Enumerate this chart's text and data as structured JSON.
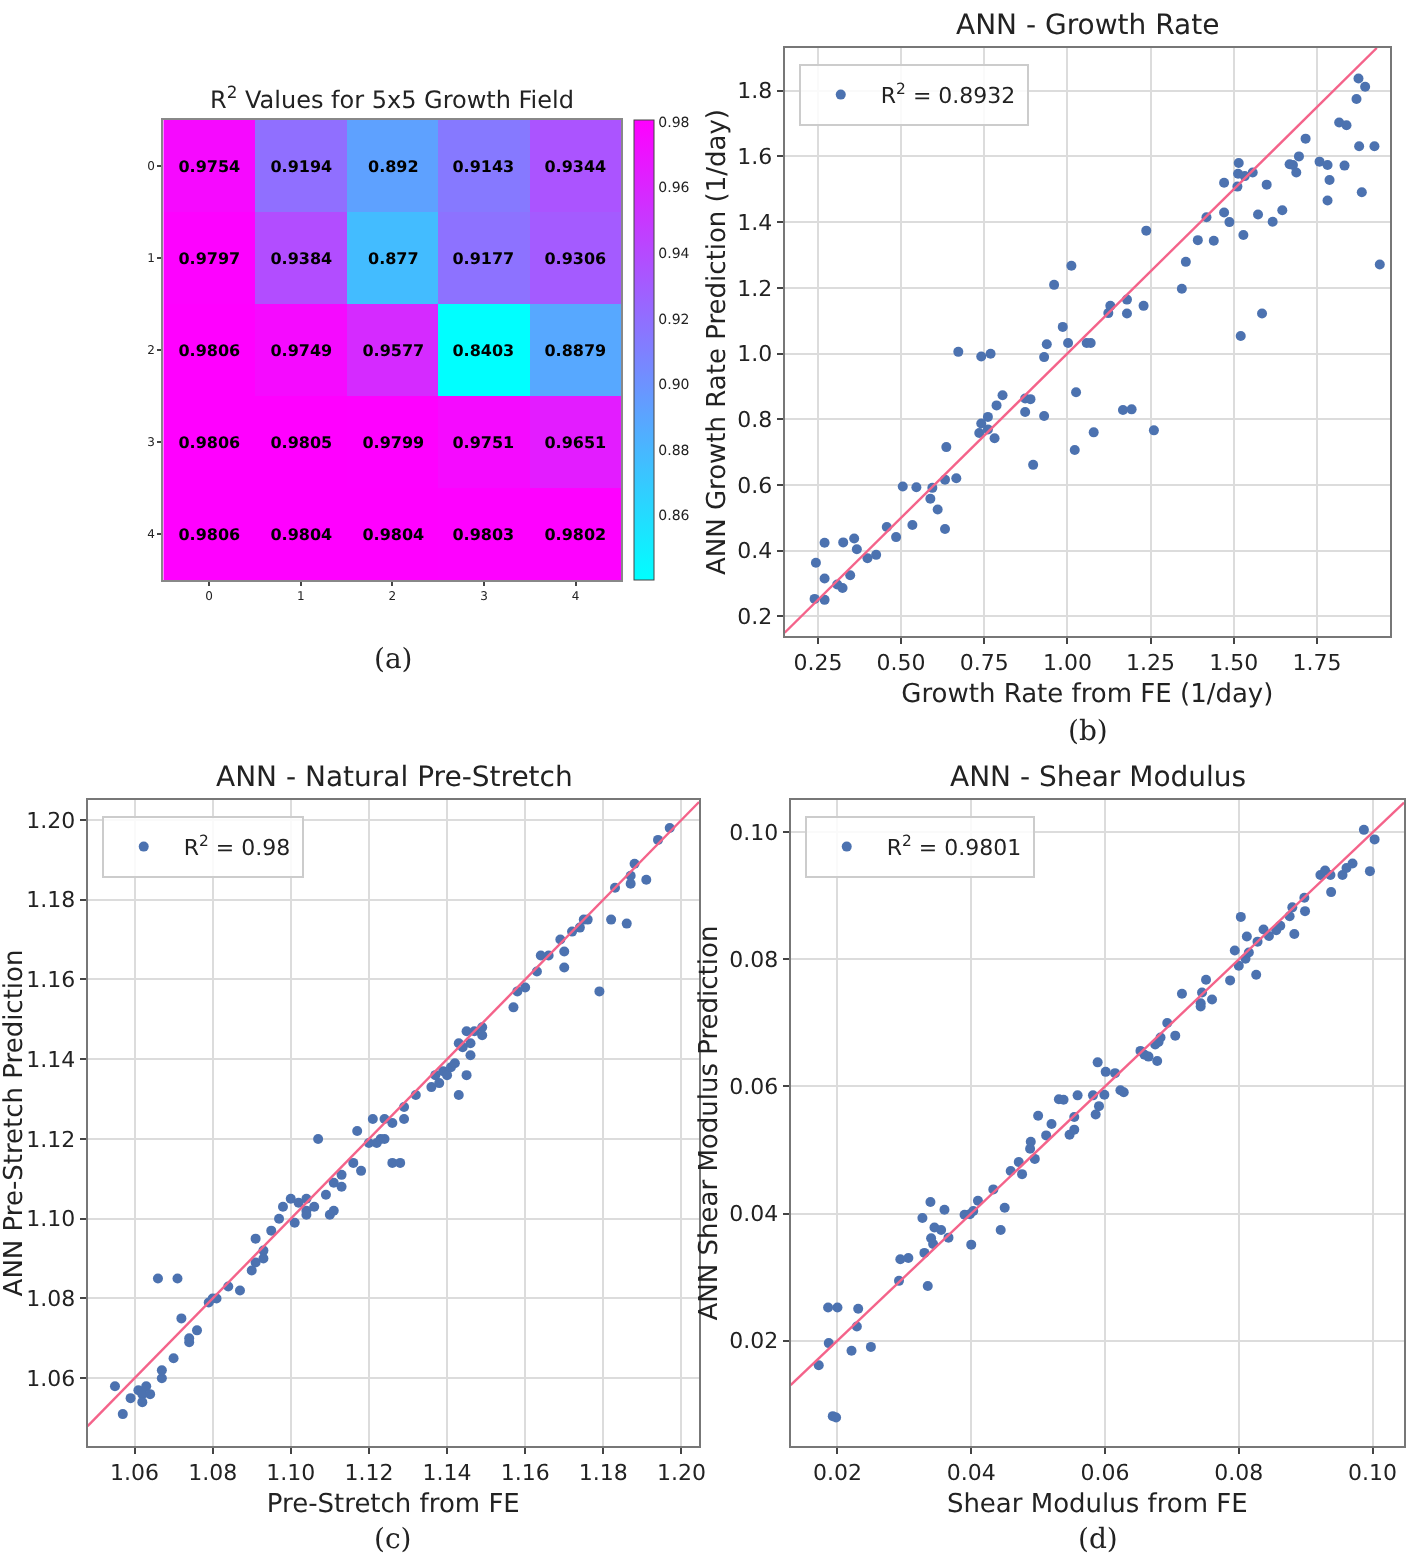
{
  "chart_data": [
    {
      "type": "heatmap",
      "title": "R$^{2}$ Values for 5x5 Growth Field",
      "categories": [
        "0",
        "1",
        "2",
        "3",
        "4"
      ],
      "y_categories": [
        "0",
        "1",
        "2",
        "3",
        "4"
      ],
      "cells": [
        [
          0.9754,
          0.9194,
          0.892,
          0.9143,
          0.9344
        ],
        [
          0.9797,
          0.9384,
          0.877,
          0.9177,
          0.9306
        ],
        [
          0.9806,
          0.9749,
          0.9577,
          0.8403,
          0.8879
        ],
        [
          0.9806,
          0.9805,
          0.9799,
          0.9751,
          0.9651
        ],
        [
          0.9806,
          0.9804,
          0.9804,
          0.9803,
          0.9802
        ]
      ],
      "data_labels": true,
      "clim": [
        0.8403,
        0.9806
      ],
      "cticks": [
        0.86,
        0.88,
        {
          "value": 0.9,
          "label": "0.90"
        },
        0.92,
        0.94,
        0.96,
        0.98
      ],
      "annotations": [
        "(a)"
      ]
    },
    {
      "type": "scatter",
      "title": "ANN - Growth Rate",
      "xlabel": "Growth Rate from FE (1/day)",
      "ylabel": "ANN Growth Rate Prediction (1/day)",
      "xlim": [
        0.15,
        1.97
      ],
      "ylim": [
        0.14,
        1.93
      ],
      "xticks": [
        0.25,
        {
          "value": 0.5,
          "label": "0.50"
        },
        0.75,
        {
          "value": 1.0,
          "label": "1.00"
        },
        1.25,
        {
          "value": 1.5,
          "label": "1.50"
        },
        1.75
      ],
      "yticks": [
        0.2,
        0.4,
        0.6,
        0.8,
        {
          "value": 1.0,
          "label": "1.0"
        },
        1.2,
        1.4,
        1.6,
        1.8
      ],
      "grid": true,
      "legend": "top left",
      "annotations": [
        "(b)"
      ],
      "series": [
        {
          "name": "R$^{2}$ = 0.8932",
          "color": "#4c72b0",
          "marker": "circle",
          "x": [
            0.24,
            0.244,
            0.27,
            0.27,
            0.27,
            0.308,
            0.324,
            0.326,
            0.347,
            0.359,
            0.367,
            0.399,
            0.425,
            0.457,
            0.485,
            0.505,
            0.534,
            0.546,
            0.588,
            0.594,
            0.61,
            0.632,
            0.632,
            0.636,
            0.666,
            0.672,
            0.735,
            0.741,
            0.741,
            0.761,
            0.761,
            0.769,
            0.781,
            0.787,
            0.805,
            0.873,
            0.873,
            0.889,
            0.897,
            0.93,
            0.93,
            0.938,
            0.96,
            0.986,
            1.002,
            1.012,
            1.022,
            1.026,
            1.058,
            1.07,
            1.079,
            1.123,
            1.129,
            1.167,
            1.193,
            1.179,
            1.179,
            1.229,
            1.237,
            1.26,
            1.344,
            1.356,
            1.392,
            1.418,
            1.44,
            1.471,
            1.471,
            1.487,
            1.511,
            1.513,
            1.515,
            1.521,
            1.529,
            1.533,
            1.557,
            1.573,
            1.585,
            1.599,
            1.617,
            1.646,
            1.668,
            1.678,
            1.688,
            1.696,
            1.716,
            1.758,
            1.782,
            1.782,
            1.788,
            1.817,
            1.833,
            1.839,
            1.869,
            1.875,
            1.877,
            1.885,
            1.895,
            1.923,
            1.939
          ],
          "values": [
            0.253,
            0.363,
            0.315,
            0.25,
            0.424,
            0.297,
            0.286,
            0.425,
            0.325,
            0.437,
            0.404,
            0.377,
            0.387,
            0.472,
            0.441,
            0.595,
            0.478,
            0.593,
            0.558,
            0.591,
            0.525,
            0.466,
            0.616,
            0.715,
            0.62,
            1.005,
            0.758,
            0.787,
            0.991,
            0.769,
            0.807,
            0.999,
            0.742,
            0.842,
            0.873,
            0.863,
            0.822,
            0.861,
            0.661,
            0.989,
            0.81,
            1.028,
            1.209,
            1.081,
            1.032,
            1.267,
            0.706,
            0.882,
            1.032,
            1.032,
            0.76,
            1.123,
            1.145,
            0.828,
            0.83,
            1.164,
            1.122,
            1.145,
            1.374,
            0.766,
            1.197,
            1.279,
            1.345,
            1.415,
            1.343,
            1.52,
            1.429,
            1.4,
            1.508,
            1.547,
            1.58,
            1.053,
            1.361,
            1.54,
            1.551,
            1.423,
            1.122,
            1.514,
            1.401,
            1.436,
            1.576,
            1.574,
            1.551,
            1.6,
            1.654,
            1.584,
            1.574,
            1.466,
            1.528,
            1.703,
            1.572,
            1.695,
            1.775,
            1.837,
            1.631,
            1.491,
            1.812,
            1.631,
            1.271
          ]
        },
        {
          "type": "line",
          "color": "#f4638a",
          "x": [
            0.15,
            1.93
          ],
          "values": [
            0.15,
            1.93
          ]
        }
      ]
    },
    {
      "type": "scatter",
      "title": "ANN - Natural Pre-Stretch",
      "xlabel": "Pre-Stretch from FE",
      "ylabel": "ANN Pre-Stretch Prediction",
      "xlim": [
        1.048,
        1.2045
      ],
      "ylim": [
        1.043,
        1.205
      ],
      "xticks": [
        1.06,
        1.08,
        {
          "value": 1.1,
          "label": "1.10"
        },
        1.12,
        1.14,
        1.16,
        1.18,
        {
          "value": 1.2,
          "label": "1.20"
        }
      ],
      "yticks": [
        1.06,
        1.08,
        {
          "value": 1.1,
          "label": "1.10"
        },
        1.12,
        1.14,
        1.16,
        1.18,
        {
          "value": 1.2,
          "label": "1.20"
        }
      ],
      "grid": true,
      "legend": "top left",
      "annotations": [
        "(c)"
      ],
      "series": [
        {
          "name": "R$^{2}$ = 0.98",
          "color": "#4c72b0",
          "marker": "circle",
          "x": [
            1.055,
            1.057,
            1.059,
            1.061,
            1.062,
            1.062,
            1.063,
            1.064,
            1.066,
            1.067,
            1.067,
            1.07,
            1.071,
            1.072,
            1.074,
            1.074,
            1.076,
            1.079,
            1.08,
            1.081,
            1.084,
            1.087,
            1.09,
            1.091,
            1.091,
            1.093,
            1.093,
            1.095,
            1.097,
            1.098,
            1.1,
            1.101,
            1.102,
            1.104,
            1.104,
            1.104,
            1.106,
            1.107,
            1.109,
            1.11,
            1.111,
            1.111,
            1.113,
            1.113,
            1.116,
            1.117,
            1.118,
            1.12,
            1.121,
            1.122,
            1.123,
            1.124,
            1.124,
            1.126,
            1.126,
            1.128,
            1.129,
            1.129,
            1.132,
            1.136,
            1.137,
            1.138,
            1.139,
            1.14,
            1.141,
            1.142,
            1.143,
            1.143,
            1.144,
            1.145,
            1.145,
            1.146,
            1.146,
            1.147,
            1.149,
            1.149,
            1.157,
            1.158,
            1.16,
            1.163,
            1.164,
            1.166,
            1.169,
            1.17,
            1.17,
            1.172,
            1.174,
            1.175,
            1.176,
            1.179,
            1.182,
            1.183,
            1.186,
            1.187,
            1.187,
            1.188,
            1.191,
            1.194,
            1.197
          ],
          "values": [
            1.058,
            1.051,
            1.055,
            1.057,
            1.056,
            1.054,
            1.058,
            1.056,
            1.085,
            1.06,
            1.062,
            1.065,
            1.085,
            1.075,
            1.069,
            1.07,
            1.072,
            1.079,
            1.08,
            1.08,
            1.083,
            1.082,
            1.087,
            1.089,
            1.095,
            1.092,
            1.09,
            1.097,
            1.1,
            1.103,
            1.105,
            1.099,
            1.104,
            1.105,
            1.102,
            1.101,
            1.103,
            1.12,
            1.106,
            1.101,
            1.102,
            1.109,
            1.111,
            1.108,
            1.114,
            1.122,
            1.112,
            1.119,
            1.125,
            1.119,
            1.12,
            1.125,
            1.12,
            1.114,
            1.124,
            1.114,
            1.128,
            1.125,
            1.131,
            1.133,
            1.136,
            1.134,
            1.137,
            1.136,
            1.138,
            1.139,
            1.144,
            1.131,
            1.143,
            1.136,
            1.147,
            1.141,
            1.144,
            1.147,
            1.148,
            1.146,
            1.153,
            1.157,
            1.158,
            1.162,
            1.166,
            1.166,
            1.17,
            1.167,
            1.163,
            1.172,
            1.173,
            1.175,
            1.175,
            1.157,
            1.175,
            1.183,
            1.174,
            1.184,
            1.186,
            1.189,
            1.185,
            1.195,
            1.198
          ]
        },
        {
          "type": "line",
          "color": "#f4638a",
          "x": [
            1.048,
            1.2045
          ],
          "values": [
            1.048,
            1.2045
          ]
        }
      ]
    },
    {
      "type": "scatter",
      "title": "ANN - Shear Modulus",
      "xlabel": "Shear Modulus from FE",
      "ylabel": "ANN Shear Modulus Prediction",
      "xlim": [
        0.013,
        0.1047
      ],
      "ylim": [
        0.0034,
        0.1051
      ],
      "xticks": [
        0.02,
        0.04,
        0.06,
        0.08,
        {
          "value": 0.1,
          "label": "0.10"
        }
      ],
      "yticks": [
        0.02,
        0.04,
        0.06,
        0.08,
        {
          "value": 0.1,
          "label": "0.10"
        }
      ],
      "grid": true,
      "legend": "top left",
      "annotations": [
        "(d)"
      ],
      "series": [
        {
          "name": "R$^{2}$ = 0.9801",
          "color": "#4c72b0",
          "marker": "circle",
          "x": [
            0.0172,
            0.0186,
            0.0187,
            0.0193,
            0.0198,
            0.02,
            0.0221,
            0.0229,
            0.0231,
            0.025,
            0.0292,
            0.0294,
            0.0306,
            0.0327,
            0.033,
            0.0335,
            0.0339,
            0.034,
            0.0343,
            0.0345,
            0.0355,
            0.036,
            0.0366,
            0.039,
            0.0398,
            0.04,
            0.0403,
            0.041,
            0.0433,
            0.0444,
            0.045,
            0.0459,
            0.0471,
            0.0476,
            0.0488,
            0.0489,
            0.0495,
            0.05,
            0.0512,
            0.052,
            0.0531,
            0.0538,
            0.0547,
            0.0554,
            0.0554,
            0.0559,
            0.0582,
            0.0586,
            0.0589,
            0.0591,
            0.0599,
            0.0601,
            0.0615,
            0.0623,
            0.0628,
            0.0653,
            0.0659,
            0.0665,
            0.0675,
            0.0678,
            0.068,
            0.0683,
            0.0693,
            0.0705,
            0.0715,
            0.0743,
            0.0743,
            0.0745,
            0.0751,
            0.076,
            0.0787,
            0.0794,
            0.08,
            0.0803,
            0.081,
            0.0812,
            0.0815,
            0.0826,
            0.0828,
            0.0837,
            0.0845,
            0.0856,
            0.0862,
            0.0876,
            0.088,
            0.0883,
            0.0898,
            0.0899,
            0.0922,
            0.0929,
            0.0937,
            0.0938,
            0.0955,
            0.0961,
            0.097,
            0.0987,
            0.0996,
            0.1003
          ],
          "values": [
            0.0161,
            0.0252,
            0.0196,
            0.0081,
            0.0079,
            0.0252,
            0.0184,
            0.0222,
            0.025,
            0.019,
            0.0294,
            0.0328,
            0.033,
            0.0393,
            0.0338,
            0.0286,
            0.0418,
            0.0361,
            0.0352,
            0.0378,
            0.0374,
            0.0406,
            0.0362,
            0.0398,
            0.0399,
            0.0351,
            0.0404,
            0.042,
            0.0438,
            0.0374,
            0.0409,
            0.0467,
            0.0481,
            0.0462,
            0.0502,
            0.0513,
            0.0486,
            0.0554,
            0.0523,
            0.0541,
            0.058,
            0.0579,
            0.0524,
            0.0552,
            0.0532,
            0.0586,
            0.0586,
            0.0556,
            0.0638,
            0.0569,
            0.0587,
            0.0623,
            0.0621,
            0.0594,
            0.0591,
            0.0656,
            0.065,
            0.0647,
            0.0666,
            0.064,
            0.067,
            0.0677,
            0.07,
            0.068,
            0.0746,
            0.0731,
            0.0726,
            0.0748,
            0.0768,
            0.0737,
            0.0767,
            0.0814,
            0.079,
            0.0867,
            0.0801,
            0.0836,
            0.0811,
            0.0776,
            0.0828,
            0.0847,
            0.0837,
            0.0846,
            0.0853,
            0.0868,
            0.0882,
            0.084,
            0.0897,
            0.0876,
            0.0933,
            0.094,
            0.0933,
            0.0906,
            0.0933,
            0.0944,
            0.0951,
            0.1004,
            0.0939,
            0.0989
          ]
        },
        {
          "type": "line",
          "color": "#f4638a",
          "x": [
            0.013,
            0.1047
          ],
          "values": [
            0.013,
            0.1047
          ]
        }
      ]
    }
  ]
}
